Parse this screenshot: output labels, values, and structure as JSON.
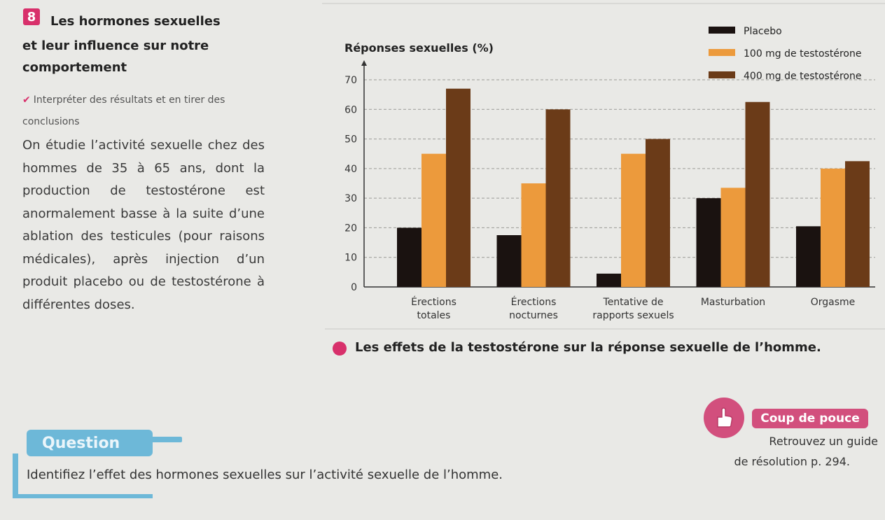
{
  "exercise": {
    "number": "8",
    "title_lines": [
      "Les hormones sexuelles",
      "et leur influence sur notre",
      "comportement"
    ],
    "skill": "Interpréter des résultats et en tirer des conclusions",
    "intro": "On étudie l’activité sexuelle chez des hommes de 35 à 65 ans, dont la production de testostérone est anormalement basse à la suite d’une ablation des testicules (pour raisons médicales), après injection d’un produit placebo ou de testostérone à différentes doses."
  },
  "caption": "Les effets de la testostérone sur la réponse sexuelle de l’homme.",
  "coup_de_pouce": {
    "label": "Coup de pouce",
    "text_line1": "Retrouvez un guide",
    "text_line2": "de résolution p. 294."
  },
  "question": {
    "label": "Question",
    "text": "Identifiez l’effet des hormones sexuelles sur l’activité sexuelle de l’homme."
  },
  "icons": {
    "check": "check-icon",
    "coup": "hand-pointer-icon"
  },
  "colors": {
    "accent": "#d8306b",
    "question": "#6db8d8"
  },
  "chart_data": {
    "type": "bar",
    "ylabel": "Réponses sexuelles (%)",
    "ylim": [
      0,
      70
    ],
    "yticks": [
      0,
      10,
      20,
      30,
      40,
      50,
      60,
      70
    ],
    "grid": true,
    "legend_position": "top-right",
    "categories": [
      [
        "Érections",
        "totales"
      ],
      [
        "Érections",
        "nocturnes"
      ],
      [
        "Tentative de",
        "rapports sexuels"
      ],
      [
        "Masturbation"
      ],
      [
        "Orgasme"
      ]
    ],
    "series": [
      {
        "name": "Placebo",
        "color": "#1a1210",
        "values": [
          20,
          17.5,
          4.5,
          30,
          20.5
        ]
      },
      {
        "name": "100 mg de testostérone",
        "color": "#ec9a3c",
        "values": [
          45,
          35,
          45,
          33.5,
          40
        ]
      },
      {
        "name": "400 mg de testostérone",
        "color": "#6b3b18",
        "values": [
          67,
          60,
          50,
          62.5,
          42.5
        ]
      }
    ]
  }
}
